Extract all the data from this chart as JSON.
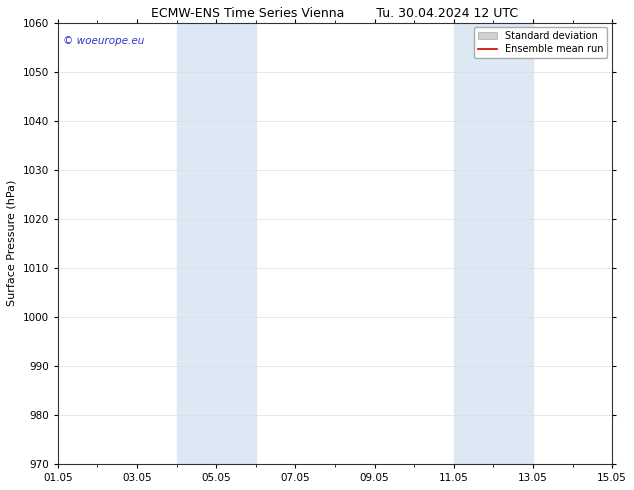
{
  "title_left": "ECMW-ENS Time Series Vienna",
  "title_right": "Tu. 30.04.2024 12 UTC",
  "ylabel": "Surface Pressure (hPa)",
  "ylim": [
    970,
    1060
  ],
  "yticks": [
    970,
    980,
    990,
    1000,
    1010,
    1020,
    1030,
    1040,
    1050,
    1060
  ],
  "xtick_labels": [
    "01.05",
    "03.05",
    "05.05",
    "07.05",
    "09.05",
    "11.05",
    "13.05",
    "15.05"
  ],
  "shaded_regions": [
    {
      "day_start": 4,
      "day_end": 6,
      "color": "#dce9f5"
    },
    {
      "day_start": 11,
      "day_end": 13,
      "color": "#dce9f5"
    }
  ],
  "watermark_text": "© woeurope.eu",
  "watermark_color": "#3333cc",
  "legend_items": [
    {
      "label": "Standard deviation",
      "type": "patch",
      "color": "#d0d0d0"
    },
    {
      "label": "Ensemble mean run",
      "type": "line",
      "color": "#cc0000"
    }
  ],
  "bg_color": "#ffffff",
  "title_fontsize": 9,
  "axis_fontsize": 8,
  "tick_fontsize": 7.5
}
